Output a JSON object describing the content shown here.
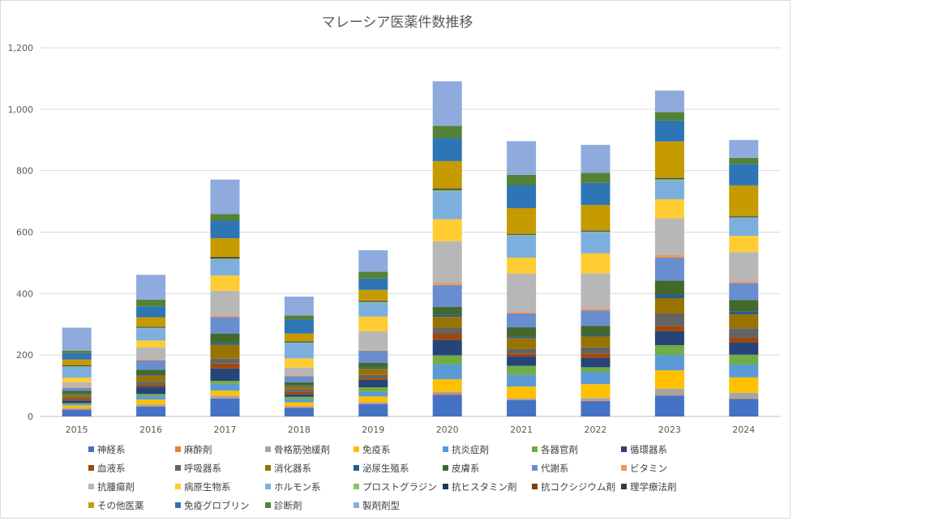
{
  "chart_data": {
    "type": "bar",
    "stacked": true,
    "title": "マレーシア医薬件数推移",
    "categories": [
      "2015",
      "2016",
      "2017",
      "2018",
      "2019",
      "2020",
      "2021",
      "2022",
      "2023",
      "2024"
    ],
    "ylim": [
      0,
      1200
    ],
    "yticks": [
      "0",
      "200",
      "400",
      "600",
      "800",
      "1,000",
      "1,200"
    ],
    "ytick_values": [
      0,
      200,
      400,
      600,
      800,
      1000,
      1200
    ],
    "grid": true,
    "legend_position": "bottom",
    "series": [
      {
        "name": "神経系",
        "color": "#4472C4",
        "values": [
          22,
          32,
          58,
          28,
          40,
          70,
          53,
          50,
          68,
          57
        ]
      },
      {
        "name": "麻酔剤",
        "color": "#ED7D31",
        "values": [
          2,
          1,
          2,
          2,
          2,
          5,
          1,
          2,
          2,
          2
        ]
      },
      {
        "name": "骨格筋弛緩剤",
        "color": "#A5A5A5",
        "values": [
          4,
          6,
          8,
          4,
          5,
          6,
          5,
          8,
          20,
          18
        ]
      },
      {
        "name": "免疫系",
        "color": "#FFC000",
        "values": [
          8,
          16,
          16,
          12,
          18,
          40,
          38,
          45,
          60,
          50
        ]
      },
      {
        "name": "抗炎症剤",
        "color": "#5B9BD5",
        "values": [
          4,
          12,
          22,
          10,
          15,
          48,
          38,
          40,
          50,
          42
        ]
      },
      {
        "name": "各器官剤",
        "color": "#70AD47",
        "values": [
          3,
          6,
          10,
          8,
          15,
          30,
          30,
          15,
          32,
          32
        ]
      },
      {
        "name": "循環器系",
        "color": "#264478",
        "values": [
          9,
          24,
          40,
          8,
          24,
          50,
          30,
          30,
          45,
          40
        ]
      },
      {
        "name": "血液系",
        "color": "#9E480E",
        "values": [
          5,
          6,
          16,
          8,
          6,
          20,
          10,
          15,
          18,
          16
        ]
      },
      {
        "name": "呼吸器系",
        "color": "#636363",
        "values": [
          5,
          10,
          16,
          8,
          10,
          20,
          15,
          20,
          40,
          30
        ]
      },
      {
        "name": "消化器系",
        "color": "#997300",
        "values": [
          10,
          20,
          45,
          10,
          20,
          35,
          35,
          35,
          50,
          45
        ]
      },
      {
        "name": "泌尿生殖系",
        "color": "#255E91",
        "values": [
          3,
          4,
          6,
          3,
          4,
          6,
          5,
          5,
          12,
          10
        ]
      },
      {
        "name": "皮膚系",
        "color": "#43682B",
        "values": [
          8,
          15,
          30,
          10,
          15,
          26,
          30,
          30,
          45,
          37
        ]
      },
      {
        "name": "代謝系",
        "color": "#698ED0",
        "values": [
          10,
          30,
          55,
          20,
          40,
          72,
          45,
          50,
          75,
          55
        ]
      },
      {
        "name": "ビタミン",
        "color": "#F1975A",
        "values": [
          3,
          3,
          5,
          3,
          3,
          7,
          5,
          6,
          8,
          6
        ]
      },
      {
        "name": "抗腫瘍剤",
        "color": "#B7B7B7",
        "values": [
          15,
          40,
          80,
          25,
          60,
          135,
          125,
          115,
          120,
          95
        ]
      },
      {
        "name": "病原生物系",
        "color": "#FFCD33",
        "values": [
          15,
          22,
          50,
          30,
          48,
          72,
          52,
          65,
          62,
          53
        ]
      },
      {
        "name": "ホルモン系",
        "color": "#7CAFDD",
        "values": [
          35,
          40,
          50,
          50,
          45,
          90,
          70,
          68,
          60,
          57
        ]
      },
      {
        "name": "プロストグラジン",
        "color": "#8CC168",
        "values": [
          2,
          2,
          5,
          2,
          3,
          5,
          4,
          3,
          5,
          3
        ]
      },
      {
        "name": "抗ヒスタミン剤",
        "color": "#1F3864",
        "values": [
          2,
          2,
          3,
          2,
          2,
          3,
          2,
          2,
          3,
          2
        ]
      },
      {
        "name": "抗コクシジウム剤",
        "color": "#843C0C",
        "values": [
          1,
          1,
          2,
          1,
          1,
          2,
          1,
          1,
          1,
          1
        ]
      },
      {
        "name": "理学療法剤",
        "color": "#3A3A3A",
        "values": [
          1,
          1,
          1,
          1,
          1,
          1,
          1,
          1,
          1,
          1
        ]
      },
      {
        "name": "その他医薬",
        "color": "#C59B00",
        "values": [
          18,
          30,
          60,
          25,
          35,
          88,
          83,
          82,
          118,
          100
        ]
      },
      {
        "name": "免疫グロブリン",
        "color": "#2E75B6",
        "values": [
          21,
          35,
          57,
          45,
          37,
          75,
          75,
          72,
          68,
          70
        ]
      },
      {
        "name": "診断剤",
        "color": "#548235",
        "values": [
          8,
          22,
          22,
          14,
          22,
          40,
          33,
          33,
          28,
          20
        ]
      },
      {
        "name": "製剤剤型",
        "color": "#8FAADC",
        "values": [
          75,
          81,
          112,
          61,
          70,
          145,
          110,
          91,
          70,
          58
        ]
      }
    ]
  }
}
